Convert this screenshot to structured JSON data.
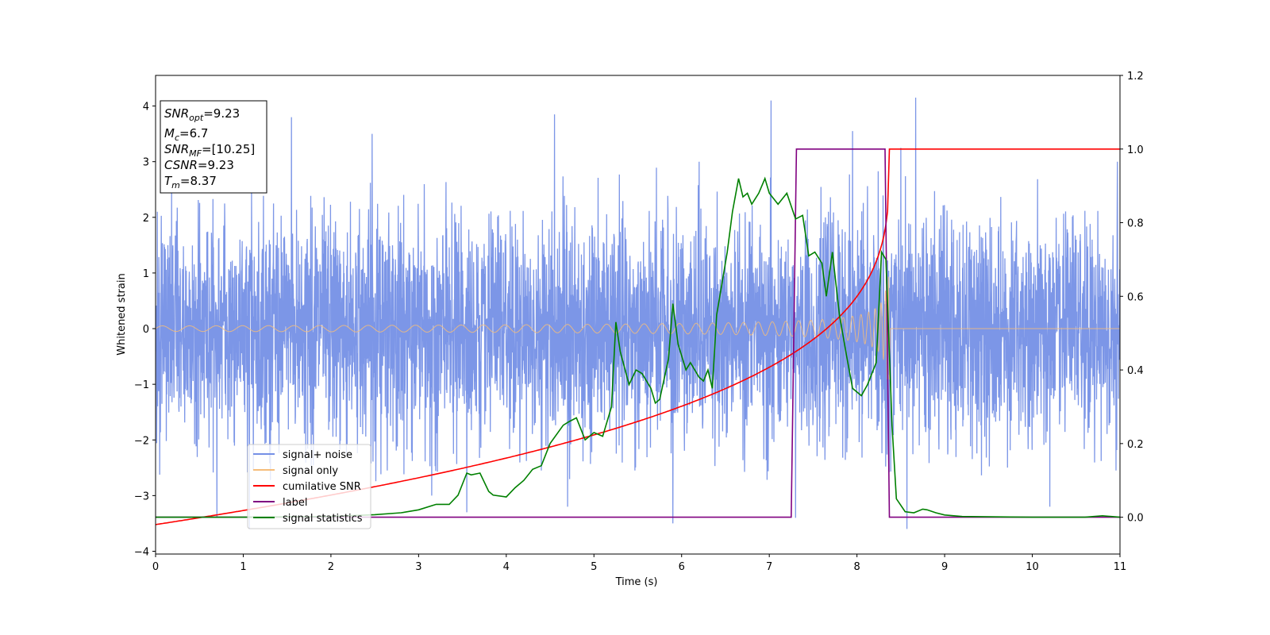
{
  "chart_data": {
    "type": "line",
    "xlabel": "Time (s)",
    "ylabel": "Whitened strain",
    "xlim": [
      0,
      11
    ],
    "ylim_left": [
      -4.05,
      4.55
    ],
    "ylim_right": [
      -0.1,
      1.2
    ],
    "x_ticks": [
      "0",
      "1",
      "2",
      "3",
      "4",
      "5",
      "6",
      "7",
      "8",
      "9",
      "10",
      "11"
    ],
    "y_ticks_left": [
      "−4",
      "−3",
      "−2",
      "−1",
      "0",
      "1",
      "2",
      "3",
      "4"
    ],
    "y_ticks_right": [
      "0.0",
      "0.2",
      "0.4",
      "0.6",
      "0.8",
      "1.0",
      "1.2"
    ],
    "grid": false,
    "legend_position": "lower-left",
    "info_box": {
      "snr_opt_label": "SNR",
      "snr_opt_sub": "opt",
      "snr_opt_value": "=9.23",
      "mc_label": "M",
      "mc_sub": "c",
      "mc_value": "=6.7",
      "snr_mf_label": "SNR",
      "snr_mf_sub": "MF",
      "snr_mf_value": "=[10.25]",
      "csnr_label": "CSNR",
      "csnr_value": "=9.23",
      "tm_label": "T",
      "tm_sub": "m",
      "tm_value": "=8.37"
    },
    "series": [
      {
        "name": "signal+ noise",
        "color": "#7590e6",
        "axis": "left",
        "noise_std": 1.0,
        "envelope_max": 2.6,
        "envelope_min": -2.4,
        "spikes": [
          [
            0.02,
            2.1
          ],
          [
            0.7,
            -3.4
          ],
          [
            1.07,
            -3.6
          ],
          [
            1.55,
            3.8
          ],
          [
            2.47,
            3.5
          ],
          [
            3.15,
            -3.0
          ],
          [
            3.55,
            -3.3
          ],
          [
            4.55,
            3.85
          ],
          [
            4.7,
            -3.2
          ],
          [
            5.9,
            -3.5
          ],
          [
            6.2,
            3.0
          ],
          [
            7.02,
            4.1
          ],
          [
            7.3,
            -3.4
          ],
          [
            7.95,
            3.55
          ],
          [
            8.5,
            3.25
          ],
          [
            8.57,
            -3.6
          ],
          [
            8.67,
            4.15
          ],
          [
            10.2,
            -3.2
          ],
          [
            10.97,
            3.0
          ]
        ]
      },
      {
        "name": "signal only",
        "color": "#f5bd7a",
        "axis": "left",
        "t_merge": 8.37,
        "amplitude_start": 0.05,
        "amplitude_end": 0.95,
        "end_dip": -0.9
      },
      {
        "name": "cumilative SNR",
        "color": "#ff0000",
        "axis": "right",
        "t_merge": 8.37,
        "start_value": -0.02,
        "end_value": 1.0
      },
      {
        "name": "label",
        "color": "#800080",
        "axis": "right",
        "points": [
          [
            0,
            0
          ],
          [
            7.25,
            0
          ],
          [
            7.31,
            1
          ],
          [
            8.32,
            1
          ],
          [
            8.37,
            0
          ],
          [
            11,
            0
          ]
        ]
      },
      {
        "name": "signal statistics",
        "color": "#008000",
        "axis": "right",
        "points": [
          [
            0,
            0.0
          ],
          [
            1,
            0.0
          ],
          [
            2,
            0.002
          ],
          [
            2.5,
            0.007
          ],
          [
            2.8,
            0.012
          ],
          [
            3.0,
            0.02
          ],
          [
            3.2,
            0.035
          ],
          [
            3.35,
            0.035
          ],
          [
            3.45,
            0.06
          ],
          [
            3.55,
            0.12
          ],
          [
            3.6,
            0.115
          ],
          [
            3.7,
            0.12
          ],
          [
            3.8,
            0.07
          ],
          [
            3.85,
            0.06
          ],
          [
            4.0,
            0.055
          ],
          [
            4.1,
            0.08
          ],
          [
            4.2,
            0.1
          ],
          [
            4.3,
            0.13
          ],
          [
            4.4,
            0.14
          ],
          [
            4.5,
            0.2
          ],
          [
            4.65,
            0.25
          ],
          [
            4.72,
            0.26
          ],
          [
            4.8,
            0.27
          ],
          [
            4.9,
            0.21
          ],
          [
            5.0,
            0.23
          ],
          [
            5.1,
            0.22
          ],
          [
            5.2,
            0.3
          ],
          [
            5.25,
            0.53
          ],
          [
            5.3,
            0.45
          ],
          [
            5.4,
            0.36
          ],
          [
            5.48,
            0.4
          ],
          [
            5.55,
            0.39
          ],
          [
            5.65,
            0.35
          ],
          [
            5.7,
            0.31
          ],
          [
            5.75,
            0.32
          ],
          [
            5.85,
            0.43
          ],
          [
            5.9,
            0.58
          ],
          [
            5.96,
            0.47
          ],
          [
            6.05,
            0.4
          ],
          [
            6.1,
            0.42
          ],
          [
            6.2,
            0.38
          ],
          [
            6.25,
            0.37
          ],
          [
            6.3,
            0.4
          ],
          [
            6.35,
            0.35
          ],
          [
            6.4,
            0.55
          ],
          [
            6.45,
            0.62
          ],
          [
            6.52,
            0.72
          ],
          [
            6.58,
            0.83
          ],
          [
            6.65,
            0.92
          ],
          [
            6.7,
            0.87
          ],
          [
            6.75,
            0.88
          ],
          [
            6.8,
            0.85
          ],
          [
            6.88,
            0.88
          ],
          [
            6.95,
            0.92
          ],
          [
            7.0,
            0.88
          ],
          [
            7.1,
            0.85
          ],
          [
            7.2,
            0.88
          ],
          [
            7.3,
            0.81
          ],
          [
            7.38,
            0.82
          ],
          [
            7.45,
            0.71
          ],
          [
            7.52,
            0.72
          ],
          [
            7.6,
            0.69
          ],
          [
            7.65,
            0.6
          ],
          [
            7.72,
            0.72
          ],
          [
            7.8,
            0.55
          ],
          [
            7.88,
            0.44
          ],
          [
            7.95,
            0.35
          ],
          [
            8.05,
            0.33
          ],
          [
            8.12,
            0.36
          ],
          [
            8.22,
            0.42
          ],
          [
            8.28,
            0.72
          ],
          [
            8.33,
            0.7
          ],
          [
            8.4,
            0.25
          ],
          [
            8.45,
            0.05
          ],
          [
            8.55,
            0.015
          ],
          [
            8.65,
            0.012
          ],
          [
            8.75,
            0.022
          ],
          [
            8.8,
            0.02
          ],
          [
            8.9,
            0.012
          ],
          [
            9.0,
            0.006
          ],
          [
            9.2,
            0.002
          ],
          [
            10.0,
            0.0
          ],
          [
            10.6,
            0.0
          ],
          [
            10.8,
            0.004
          ],
          [
            11,
            0.0
          ]
        ]
      }
    ]
  }
}
